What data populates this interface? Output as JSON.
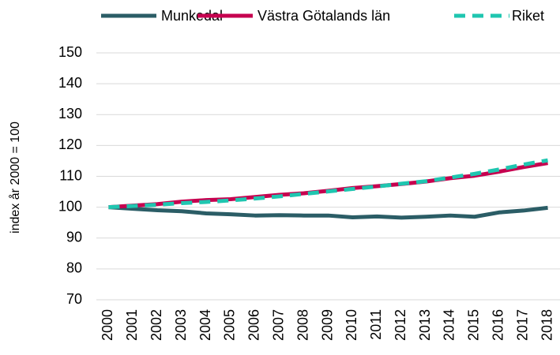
{
  "chart_data": {
    "type": "line",
    "y_label": "index år 2000 = 100",
    "categories": [
      "2000",
      "2001",
      "2002",
      "2003",
      "2004",
      "2005",
      "2006",
      "2007",
      "2008",
      "2009",
      "2010",
      "2011",
      "2012",
      "2013",
      "2014",
      "2015",
      "2016",
      "2017",
      "2018"
    ],
    "series": [
      {
        "name": "Munkedal",
        "color": "#2b5d66",
        "dash": false,
        "values": [
          100,
          99.5,
          99,
          98.7,
          98,
          97.7,
          97.3,
          97.4,
          97.3,
          97.3,
          96.7,
          97,
          96.6,
          96.9,
          97.3,
          96.9,
          98.3,
          98.9,
          99.8
        ]
      },
      {
        "name": "Västra Götalands län",
        "color": "#c6004f",
        "dash": false,
        "values": [
          100,
          100.5,
          101,
          101.8,
          102.3,
          102.6,
          103.3,
          104,
          104.5,
          105.3,
          106.2,
          106.8,
          107.5,
          108.3,
          109.4,
          110.2,
          111.5,
          113,
          114.3
        ]
      },
      {
        "name": "Riket",
        "color": "#1fc6b0",
        "dash": true,
        "values": [
          100,
          100.4,
          100.8,
          101.3,
          101.7,
          102.2,
          102.8,
          103.5,
          104.3,
          105.1,
          105.9,
          106.7,
          107.6,
          108.4,
          109.6,
          110.8,
          112.2,
          113.8,
          115.2
        ]
      }
    ],
    "ylim": [
      70,
      150
    ],
    "yticks": [
      70,
      80,
      90,
      100,
      110,
      120,
      130,
      140,
      150
    ],
    "grid": true,
    "legend": "top"
  }
}
